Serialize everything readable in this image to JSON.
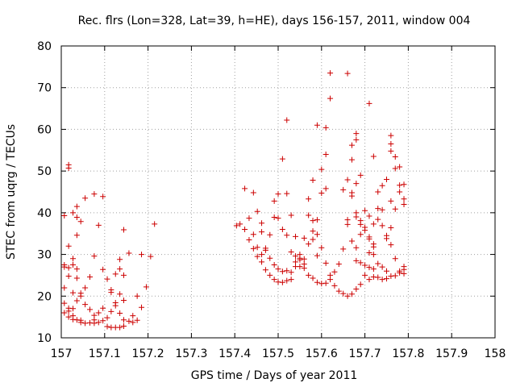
{
  "chart_data": {
    "type": "scatter",
    "title": "Rec. flrs (Lon=328, Lat=39, h=HE), days 156-157, 2011, window 004",
    "xlabel": "GPS time / Days of year 2011",
    "ylabel": "STEC from uqrg / TECUs",
    "xlim": [
      157,
      158
    ],
    "ylim": [
      10,
      80
    ],
    "x_ticks": [
      "157",
      "157.1",
      "157.2",
      "157.3",
      "157.4",
      "157.5",
      "157.6",
      "157.7",
      "157.8",
      "157.9",
      "158"
    ],
    "y_ticks": [
      "10",
      "20",
      "30",
      "40",
      "50",
      "60",
      "70",
      "80"
    ],
    "grid": true,
    "marker": "+",
    "marker_color": "#cc0000",
    "points": [
      [
        157.007,
        39.3
      ],
      [
        157.007,
        27.5
      ],
      [
        157.007,
        27.0
      ],
      [
        157.007,
        22.0
      ],
      [
        157.007,
        18.3
      ],
      [
        157.007,
        16.0
      ],
      [
        157.017,
        51.5
      ],
      [
        157.017,
        50.7
      ],
      [
        157.017,
        32.0
      ],
      [
        157.017,
        26.8
      ],
      [
        157.017,
        24.8
      ],
      [
        157.017,
        17.1
      ],
      [
        157.017,
        16.4
      ],
      [
        157.017,
        15.0
      ],
      [
        157.027,
        40.0
      ],
      [
        157.027,
        29.0
      ],
      [
        157.027,
        27.5
      ],
      [
        157.027,
        20.8
      ],
      [
        157.027,
        17.0
      ],
      [
        157.027,
        15.3
      ],
      [
        157.027,
        14.4
      ],
      [
        157.036,
        41.5
      ],
      [
        157.036,
        38.9
      ],
      [
        157.036,
        34.6
      ],
      [
        157.036,
        26.5
      ],
      [
        157.036,
        24.3
      ],
      [
        157.036,
        18.9
      ],
      [
        157.036,
        14.3
      ],
      [
        157.045,
        37.9
      ],
      [
        157.045,
        20.7
      ],
      [
        157.045,
        20.0
      ],
      [
        157.045,
        14.2
      ],
      [
        157.045,
        13.7
      ],
      [
        157.055,
        43.5
      ],
      [
        157.055,
        22.0
      ],
      [
        157.055,
        18.0
      ],
      [
        157.055,
        13.5
      ],
      [
        157.066,
        24.6
      ],
      [
        157.066,
        16.8
      ],
      [
        157.066,
        13.6
      ],
      [
        157.076,
        44.5
      ],
      [
        157.076,
        29.6
      ],
      [
        157.076,
        15.4
      ],
      [
        157.076,
        14.3
      ],
      [
        157.076,
        13.5
      ],
      [
        157.086,
        37.0
      ],
      [
        157.086,
        16.0
      ],
      [
        157.086,
        13.7
      ],
      [
        157.096,
        43.9
      ],
      [
        157.096,
        26.4
      ],
      [
        157.096,
        17.1
      ],
      [
        157.096,
        14.1
      ],
      [
        157.106,
        24.1
      ],
      [
        157.106,
        14.8
      ],
      [
        157.106,
        12.7
      ],
      [
        157.115,
        21.5
      ],
      [
        157.115,
        20.9
      ],
      [
        157.115,
        16.3
      ],
      [
        157.115,
        12.5
      ],
      [
        157.125,
        25.3
      ],
      [
        157.125,
        18.4
      ],
      [
        157.125,
        17.7
      ],
      [
        157.125,
        12.5
      ],
      [
        157.135,
        28.8
      ],
      [
        157.135,
        26.5
      ],
      [
        157.135,
        20.5
      ],
      [
        157.135,
        15.9
      ],
      [
        157.135,
        12.5
      ],
      [
        157.144,
        35.9
      ],
      [
        157.144,
        25.0
      ],
      [
        157.144,
        19.0
      ],
      [
        157.144,
        14.3
      ],
      [
        157.144,
        12.8
      ],
      [
        157.156,
        30.3
      ],
      [
        157.156,
        14.0
      ],
      [
        157.165,
        15.3
      ],
      [
        157.165,
        13.7
      ],
      [
        157.175,
        20.0
      ],
      [
        157.175,
        14.2
      ],
      [
        157.185,
        30.0
      ],
      [
        157.185,
        17.3
      ],
      [
        157.196,
        22.2
      ],
      [
        157.206,
        29.5
      ],
      [
        157.215,
        37.3
      ],
      [
        157.404,
        36.9
      ],
      [
        157.412,
        37.3
      ],
      [
        157.423,
        45.8
      ],
      [
        157.423,
        36.0
      ],
      [
        157.433,
        38.7
      ],
      [
        157.433,
        33.5
      ],
      [
        157.443,
        44.8
      ],
      [
        157.443,
        34.8
      ],
      [
        157.443,
        31.4
      ],
      [
        157.452,
        40.3
      ],
      [
        157.452,
        31.7
      ],
      [
        157.452,
        29.5
      ],
      [
        157.462,
        37.5
      ],
      [
        157.462,
        35.4
      ],
      [
        157.462,
        30.0
      ],
      [
        157.462,
        28.2
      ],
      [
        157.471,
        31.5
      ],
      [
        157.471,
        31.0
      ],
      [
        157.471,
        26.3
      ],
      [
        157.481,
        34.7
      ],
      [
        157.481,
        29.1
      ],
      [
        157.481,
        25.0
      ],
      [
        157.491,
        42.8
      ],
      [
        157.491,
        38.9
      ],
      [
        157.491,
        27.5
      ],
      [
        157.491,
        24.0
      ],
      [
        157.5,
        44.5
      ],
      [
        157.5,
        38.7
      ],
      [
        157.5,
        26.5
      ],
      [
        157.5,
        23.4
      ],
      [
        157.51,
        52.9
      ],
      [
        157.51,
        36.0
      ],
      [
        157.51,
        25.9
      ],
      [
        157.51,
        23.3
      ],
      [
        157.52,
        62.2
      ],
      [
        157.52,
        44.6
      ],
      [
        157.52,
        34.6
      ],
      [
        157.52,
        26.1
      ],
      [
        157.52,
        23.7
      ],
      [
        157.53,
        39.4
      ],
      [
        157.53,
        30.6
      ],
      [
        157.53,
        25.7
      ],
      [
        157.53,
        24.0
      ],
      [
        157.54,
        34.3
      ],
      [
        157.54,
        29.6
      ],
      [
        157.54,
        28.2
      ],
      [
        157.54,
        27.1
      ],
      [
        157.55,
        30.0
      ],
      [
        157.55,
        29.1
      ],
      [
        157.55,
        28.7
      ],
      [
        157.55,
        27.1
      ],
      [
        157.56,
        33.9
      ],
      [
        157.56,
        28.9
      ],
      [
        157.56,
        27.7
      ],
      [
        157.56,
        26.7
      ],
      [
        157.57,
        43.3
      ],
      [
        157.57,
        39.4
      ],
      [
        157.57,
        32.5
      ],
      [
        157.57,
        25.0
      ],
      [
        157.58,
        47.8
      ],
      [
        157.58,
        38.1
      ],
      [
        157.58,
        35.6
      ],
      [
        157.58,
        33.6
      ],
      [
        157.58,
        24.3
      ],
      [
        157.59,
        61.0
      ],
      [
        157.59,
        38.3
      ],
      [
        157.59,
        34.8
      ],
      [
        157.59,
        29.7
      ],
      [
        157.59,
        23.3
      ],
      [
        157.6,
        50.4
      ],
      [
        157.6,
        44.7
      ],
      [
        157.6,
        31.6
      ],
      [
        157.6,
        23.0
      ],
      [
        157.61,
        60.4
      ],
      [
        157.61,
        54.0
      ],
      [
        157.61,
        45.8
      ],
      [
        157.61,
        27.9
      ],
      [
        157.61,
        23.1
      ],
      [
        157.62,
        73.5
      ],
      [
        157.62,
        67.4
      ],
      [
        157.62,
        25.0
      ],
      [
        157.62,
        24.0
      ],
      [
        157.63,
        25.8
      ],
      [
        157.63,
        22.5
      ],
      [
        157.64,
        27.7
      ],
      [
        157.64,
        21.2
      ],
      [
        157.65,
        45.5
      ],
      [
        157.65,
        31.3
      ],
      [
        157.65,
        20.6
      ],
      [
        157.66,
        73.4
      ],
      [
        157.66,
        47.9
      ],
      [
        157.66,
        38.3
      ],
      [
        157.66,
        37.2
      ],
      [
        157.66,
        20.0
      ],
      [
        157.67,
        56.2
      ],
      [
        157.67,
        52.7
      ],
      [
        157.67,
        44.8
      ],
      [
        157.67,
        44.0
      ],
      [
        157.67,
        33.2
      ],
      [
        157.67,
        20.5
      ],
      [
        157.68,
        59.0
      ],
      [
        157.68,
        57.5
      ],
      [
        157.68,
        47.0
      ],
      [
        157.68,
        40.0
      ],
      [
        157.68,
        39.0
      ],
      [
        157.68,
        31.6
      ],
      [
        157.68,
        28.5
      ],
      [
        157.68,
        21.7
      ],
      [
        157.69,
        49.0
      ],
      [
        157.69,
        38.1
      ],
      [
        157.69,
        37.2
      ],
      [
        157.69,
        34.8
      ],
      [
        157.69,
        28.0
      ],
      [
        157.69,
        22.8
      ],
      [
        157.7,
        40.5
      ],
      [
        157.7,
        36.5
      ],
      [
        157.7,
        35.8
      ],
      [
        157.7,
        27.4
      ],
      [
        157.7,
        25.0
      ],
      [
        157.71,
        66.2
      ],
      [
        157.71,
        39.2
      ],
      [
        157.71,
        34.2
      ],
      [
        157.71,
        33.7
      ],
      [
        157.71,
        30.4
      ],
      [
        157.71,
        26.9
      ],
      [
        157.71,
        24.0
      ],
      [
        157.72,
        53.5
      ],
      [
        157.72,
        37.3
      ],
      [
        157.72,
        32.5
      ],
      [
        157.72,
        31.8
      ],
      [
        157.72,
        30.0
      ],
      [
        157.72,
        26.5
      ],
      [
        157.72,
        24.6
      ],
      [
        157.73,
        45.0
      ],
      [
        157.73,
        41.0
      ],
      [
        157.73,
        38.4
      ],
      [
        157.73,
        27.8
      ],
      [
        157.73,
        24.5
      ],
      [
        157.74,
        46.5
      ],
      [
        157.74,
        40.7
      ],
      [
        157.74,
        36.9
      ],
      [
        157.74,
        27.0
      ],
      [
        157.74,
        24.0
      ],
      [
        157.75,
        48.0
      ],
      [
        157.75,
        34.5
      ],
      [
        157.75,
        33.8
      ],
      [
        157.75,
        26.0
      ],
      [
        157.75,
        24.2
      ],
      [
        157.76,
        58.5
      ],
      [
        157.76,
        56.5
      ],
      [
        157.76,
        54.8
      ],
      [
        157.76,
        42.8
      ],
      [
        157.76,
        36.4
      ],
      [
        157.76,
        32.3
      ],
      [
        157.76,
        24.8
      ],
      [
        157.77,
        53.4
      ],
      [
        157.77,
        50.6
      ],
      [
        157.77,
        40.9
      ],
      [
        157.77,
        29.0
      ],
      [
        157.77,
        24.9
      ],
      [
        157.78,
        51.0
      ],
      [
        157.78,
        46.6
      ],
      [
        157.78,
        45.0
      ],
      [
        157.78,
        26.0
      ],
      [
        157.78,
        25.6
      ],
      [
        157.79,
        46.8
      ],
      [
        157.79,
        43.3
      ],
      [
        157.79,
        42.0
      ],
      [
        157.79,
        27.1
      ],
      [
        157.79,
        26.4
      ],
      [
        157.79,
        25.4
      ]
    ]
  }
}
